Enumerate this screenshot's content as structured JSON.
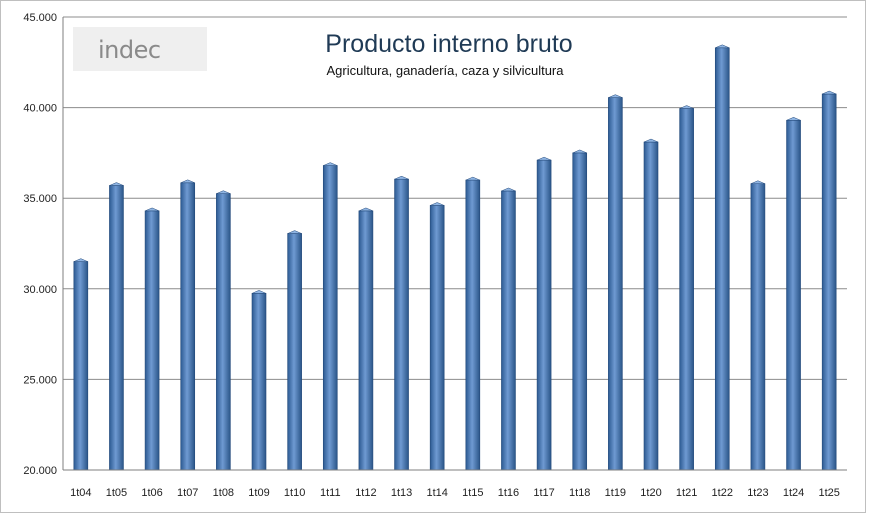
{
  "logo": {
    "text": "indec"
  },
  "chart_data": {
    "type": "bar",
    "title": "Producto interno bruto",
    "subtitle": "Agricultura, ganadería, caza y silvicultura",
    "xlabel": "",
    "ylabel": "",
    "ylim": [
      20000,
      45000
    ],
    "yticks": [
      20000,
      25000,
      30000,
      35000,
      40000,
      45000
    ],
    "ytick_labels": [
      "20.000",
      "25.000",
      "30.000",
      "35.000",
      "40.000",
      "45.000"
    ],
    "grid": true,
    "legend": "none",
    "bar_color": "#4f7fbf",
    "categories": [
      "1t04",
      "1t05",
      "1t06",
      "1t07",
      "1t08",
      "1t09",
      "1t10",
      "1t11",
      "1t12",
      "1t13",
      "1t14",
      "1t15",
      "1t16",
      "1t17",
      "1t18",
      "1t19",
      "1t20",
      "1t21",
      "1t22",
      "1t23",
      "1t24",
      "1t25"
    ],
    "values": [
      31500,
      35700,
      34300,
      35850,
      35250,
      29750,
      33050,
      36800,
      34300,
      36050,
      34600,
      36000,
      35400,
      37100,
      37500,
      40550,
      38100,
      39950,
      43300,
      35800,
      39300,
      40750
    ]
  }
}
